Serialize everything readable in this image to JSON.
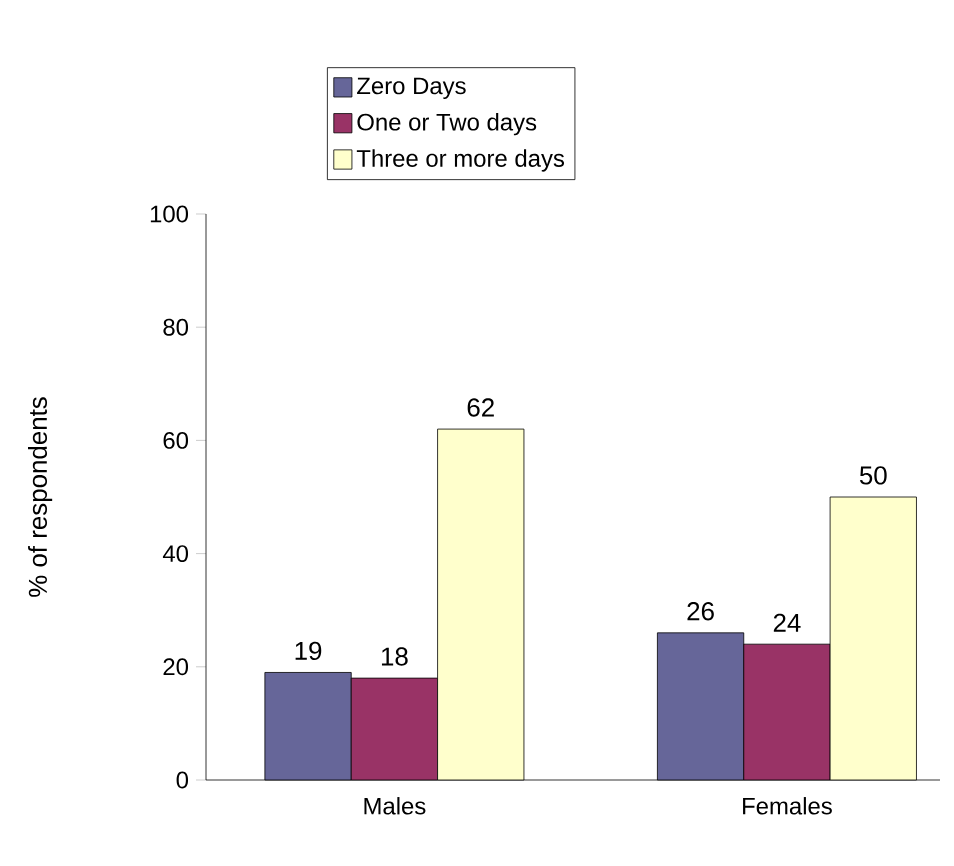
{
  "chart_data": {
    "type": "bar",
    "categories": [
      "Males",
      "Females"
    ],
    "ylabel": "% of respondents",
    "series": [
      {
        "name": "Zero Days",
        "color": "#666699",
        "values": [
          19,
          26
        ]
      },
      {
        "name": "One or Two days",
        "color": "#993366",
        "values": [
          18,
          24
        ]
      },
      {
        "name": "Three or more days",
        "color": "#ffffcc",
        "values": [
          62,
          50
        ]
      }
    ],
    "ylim": [
      0,
      100
    ],
    "yticks": [
      0,
      20,
      40,
      60,
      80,
      100
    ],
    "legend": "top",
    "data_labels": true
  }
}
